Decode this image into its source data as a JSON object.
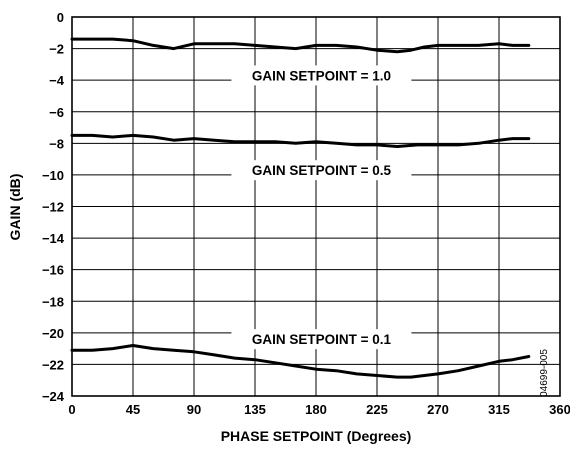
{
  "figure_id": "04699-005",
  "chart_data": {
    "type": "line",
    "title": "",
    "xlabel": "PHASE SETPOINT (Degrees)",
    "ylabel": "GAIN (dB)",
    "xlim": [
      0,
      360
    ],
    "ylim": [
      -24,
      0
    ],
    "xticks": [
      0,
      45,
      90,
      135,
      180,
      225,
      270,
      315,
      360
    ],
    "yticks": [
      0,
      -2,
      -4,
      -6,
      -8,
      -10,
      -12,
      -14,
      -16,
      -18,
      -20,
      -22,
      -24
    ],
    "grid": true,
    "legend": "none",
    "series": [
      {
        "x": [
          0,
          15,
          30,
          45,
          60,
          75,
          90,
          105,
          120,
          135,
          150,
          165,
          180,
          195,
          210,
          225,
          240,
          250,
          260,
          270,
          285,
          300,
          315,
          325,
          337
        ],
        "values": [
          -1.4,
          -1.4,
          -1.4,
          -1.5,
          -1.8,
          -2.0,
          -1.7,
          -1.7,
          -1.7,
          -1.8,
          -1.9,
          -2.0,
          -1.8,
          -1.8,
          -1.9,
          -2.1,
          -2.2,
          -2.1,
          -1.9,
          -1.8,
          -1.8,
          -1.8,
          -1.7,
          -1.8,
          -1.8
        ]
      },
      {
        "x": [
          0,
          15,
          30,
          45,
          60,
          75,
          90,
          105,
          120,
          135,
          150,
          165,
          180,
          195,
          210,
          225,
          240,
          255,
          270,
          285,
          300,
          315,
          325,
          337
        ],
        "values": [
          -7.5,
          -7.5,
          -7.6,
          -7.5,
          -7.6,
          -7.8,
          -7.7,
          -7.8,
          -7.9,
          -7.9,
          -7.9,
          -8.0,
          -7.9,
          -8.0,
          -8.1,
          -8.1,
          -8.2,
          -8.1,
          -8.1,
          -8.1,
          -8.0,
          -7.8,
          -7.7,
          -7.7
        ]
      },
      {
        "x": [
          0,
          15,
          30,
          45,
          60,
          75,
          90,
          105,
          120,
          135,
          150,
          165,
          180,
          195,
          210,
          225,
          240,
          250,
          260,
          270,
          285,
          300,
          315,
          325,
          337
        ],
        "values": [
          -21.1,
          -21.1,
          -21.0,
          -20.8,
          -21.0,
          -21.1,
          -21.2,
          -21.4,
          -21.6,
          -21.7,
          -21.9,
          -22.1,
          -22.3,
          -22.4,
          -22.6,
          -22.7,
          -22.8,
          -22.8,
          -22.7,
          -22.6,
          -22.4,
          -22.1,
          -21.8,
          -21.7,
          -21.5
        ]
      }
    ],
    "annotations": [
      {
        "text": "GAIN SETPOINT = 1.0",
        "x": 184,
        "y": -3.7
      },
      {
        "text": "GAIN SETPOINT = 0.5",
        "x": 184,
        "y": -9.7
      },
      {
        "text": "GAIN SETPOINT = 0.1",
        "x": 184,
        "y": -20.4
      }
    ]
  }
}
